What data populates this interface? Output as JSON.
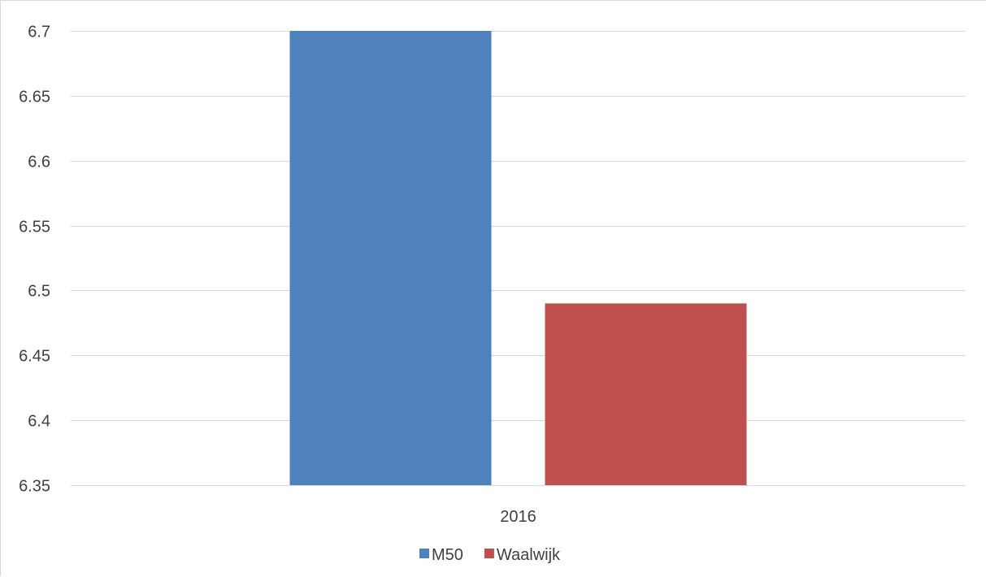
{
  "chart_data": {
    "type": "bar",
    "title": "",
    "xlabel": "",
    "ylabel": "",
    "categories": [
      "2016"
    ],
    "series": [
      {
        "name": "M50",
        "values": [
          6.7
        ],
        "color": "#4f81bd"
      },
      {
        "name": "Waalwijk",
        "values": [
          6.49
        ],
        "color": "#c0504d"
      }
    ],
    "ylim": [
      6.35,
      6.7
    ],
    "yticks": [
      6.35,
      6.4,
      6.45,
      6.5,
      6.55,
      6.6,
      6.65,
      6.7
    ],
    "ytick_labels": [
      "6.35",
      "6.4",
      "6.45",
      "6.5",
      "6.55",
      "6.6",
      "6.65",
      "6.7"
    ],
    "grid": true,
    "legend_position": "bottom",
    "gridline_color": "#d9d9d9",
    "text_color": "#404040"
  }
}
